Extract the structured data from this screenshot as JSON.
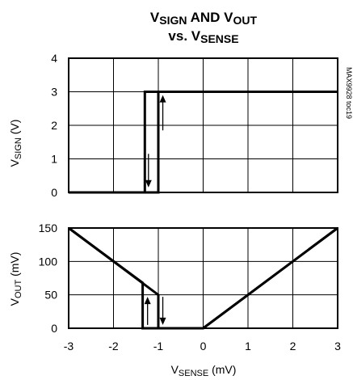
{
  "chart_data": [
    {
      "type": "line",
      "title_parts": [
        {
          "text": "V",
          "sub": false
        },
        {
          "text": "SIGN",
          "sub": true
        },
        {
          "text": " AND V",
          "sub": false
        },
        {
          "text": "OUT",
          "sub": true
        }
      ],
      "title_line2_parts": [
        {
          "text": "vs. V",
          "sub": false
        },
        {
          "text": "SENSE",
          "sub": true
        }
      ],
      "ylabel_parts": [
        {
          "text": "V",
          "sub": false
        },
        {
          "text": "SIGN",
          "sub": true
        },
        {
          "text": " (V)",
          "sub": false
        }
      ],
      "xlim": [
        -3,
        3
      ],
      "ylim": [
        0,
        4
      ],
      "yticks": [
        "0",
        "1",
        "2",
        "3",
        "4"
      ],
      "grid": true,
      "series": [
        {
          "x": [
            -3,
            -1.3,
            -1.3,
            3
          ],
          "y": [
            0,
            0,
            3,
            3
          ]
        },
        {
          "x": [
            -3,
            -1.0,
            -1.0,
            3
          ],
          "y": [
            0,
            0,
            3,
            3
          ]
        }
      ],
      "annotations": [
        {
          "type": "arrow",
          "direction": "down",
          "x": -1.22,
          "y_from": 1.15,
          "y_to": 0.15
        },
        {
          "type": "arrow",
          "direction": "up",
          "x": -0.9,
          "y_from": 1.85,
          "y_to": 2.9
        }
      ],
      "side_code": "MAX9928 toc19"
    },
    {
      "type": "line",
      "ylabel_parts": [
        {
          "text": "V",
          "sub": false
        },
        {
          "text": "OUT",
          "sub": true
        },
        {
          "text": " (mV)",
          "sub": false
        }
      ],
      "xlabel_parts": [
        {
          "text": "V",
          "sub": false
        },
        {
          "text": "SENSE",
          "sub": true
        },
        {
          "text": " (mV)",
          "sub": false
        }
      ],
      "xlim": [
        -3,
        3
      ],
      "ylim": [
        0,
        150
      ],
      "xticks": [
        "-3",
        "-2",
        "-1",
        "0",
        "1",
        "2",
        "3"
      ],
      "yticks": [
        "0",
        "50",
        "100",
        "150"
      ],
      "grid": true,
      "series": [
        {
          "x": [
            -3,
            -1.35,
            -1.35,
            0,
            3
          ],
          "y": [
            150,
            68,
            0,
            0,
            150
          ]
        },
        {
          "x": [
            -3,
            -1.0,
            -1.0,
            0,
            3
          ],
          "y": [
            150,
            50,
            0,
            0,
            150
          ]
        }
      ],
      "annotations": [
        {
          "type": "arrow",
          "direction": "up",
          "x": -1.24,
          "y_from": 5,
          "y_to": 47
        },
        {
          "type": "arrow",
          "direction": "down",
          "x": -0.9,
          "y_from": 47,
          "y_to": 5
        }
      ]
    }
  ]
}
